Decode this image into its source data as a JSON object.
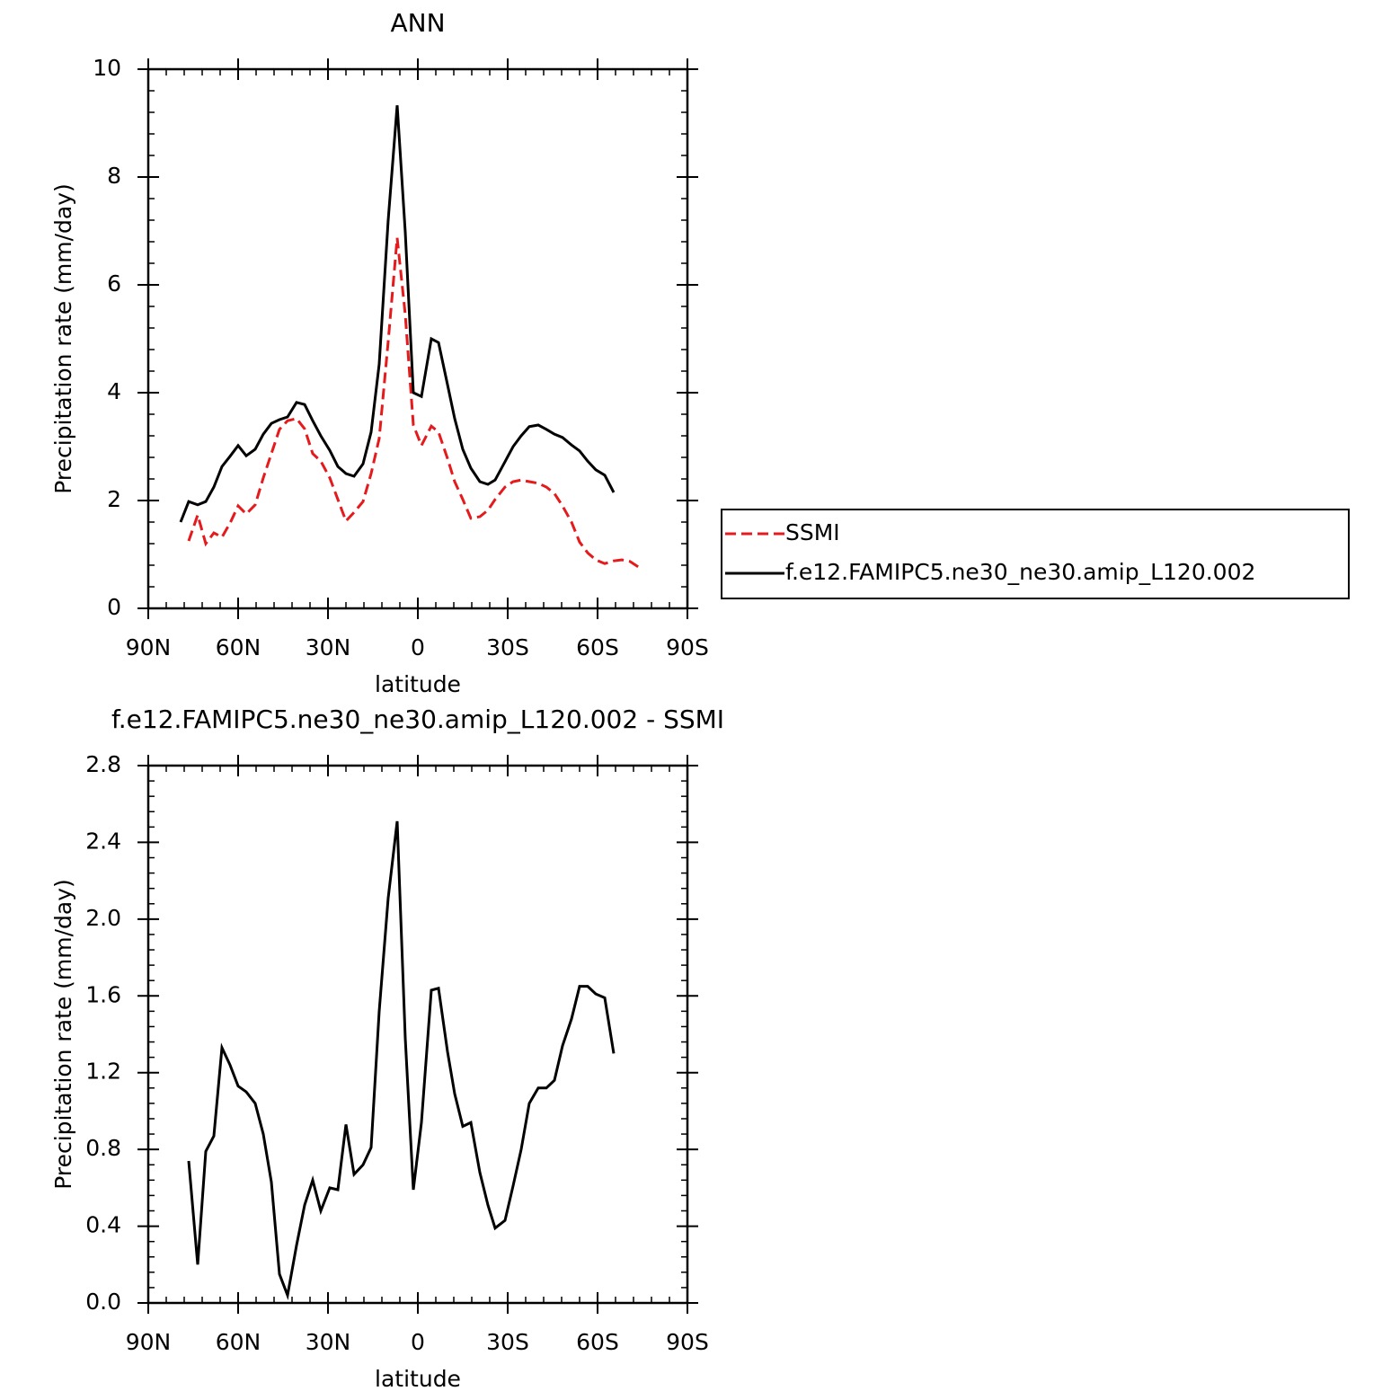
{
  "chart_data": [
    {
      "type": "line",
      "title": "ANN",
      "xlabel": "latitude",
      "ylabel": "Precipitation rate (mm/day)",
      "x": [
        79.2,
        76.5,
        73.5,
        70.8,
        68.1,
        65.4,
        62.7,
        60.0,
        57.3,
        54.3,
        51.6,
        48.9,
        46.2,
        43.5,
        40.5,
        37.8,
        35.1,
        32.4,
        29.4,
        26.7,
        24.0,
        21.3,
        18.3,
        15.6,
        12.9,
        9.9,
        6.9,
        4.2,
        1.5,
        -1.2,
        -4.5,
        -6.9,
        -9.9,
        -12.3,
        -15.0,
        -17.7,
        -20.7,
        -23.4,
        -25.8,
        -29.1,
        -31.8,
        -34.5,
        -37.2,
        -40.2,
        -42.9,
        -45.6,
        -48.3,
        -51.3,
        -54.0,
        -56.7,
        -59.4,
        -62.4,
        -65.4,
        -68.1,
        -70.8,
        -74.1
      ],
      "series": [
        {
          "name": "SSMI",
          "color": "#e41a1c",
          "linestyle": "dashed",
          "values": [
            null,
            1.25,
            1.73,
            1.2,
            1.4,
            1.32,
            1.58,
            1.9,
            1.75,
            1.92,
            2.42,
            2.87,
            3.32,
            3.48,
            3.52,
            3.33,
            2.87,
            2.73,
            2.42,
            2.02,
            1.62,
            1.78,
            1.98,
            2.5,
            3.15,
            4.95,
            6.87,
            5.45,
            3.4,
            3.02,
            3.38,
            3.27,
            2.78,
            2.35,
            2.02,
            1.67,
            1.7,
            1.82,
            2.02,
            2.25,
            2.35,
            2.38,
            2.35,
            2.32,
            2.25,
            2.13,
            1.9,
            1.6,
            1.23,
            1.03,
            0.9,
            0.83,
            0.88,
            0.9,
            0.87,
            0.75
          ]
        },
        {
          "name": "f.e12.FAMIPC5.ne30_ne30.amip_L120.002",
          "color": "#000000",
          "linestyle": "solid",
          "values": [
            1.6,
            1.98,
            1.92,
            1.98,
            2.25,
            2.63,
            2.82,
            3.02,
            2.83,
            2.95,
            3.23,
            3.43,
            3.5,
            3.55,
            3.82,
            3.78,
            3.48,
            3.2,
            2.93,
            2.63,
            2.5,
            2.45,
            2.68,
            3.27,
            4.53,
            7.2,
            9.33,
            6.98,
            4.0,
            3.93,
            5.0,
            4.93,
            4.15,
            3.52,
            2.95,
            2.6,
            2.35,
            2.3,
            2.38,
            2.72,
            3.0,
            3.2,
            3.37,
            3.4,
            3.32,
            3.23,
            3.17,
            3.03,
            2.92,
            2.73,
            2.57,
            2.47,
            2.15,
            null,
            null,
            null
          ]
        }
      ],
      "xlim": [
        90,
        -90
      ],
      "xticks": [
        {
          "value": 90,
          "label": "90N"
        },
        {
          "value": 60,
          "label": "60N"
        },
        {
          "value": 30,
          "label": "30N"
        },
        0,
        {
          "value": -30,
          "label": "30S"
        },
        {
          "value": -60,
          "label": "60S"
        },
        {
          "value": -90,
          "label": "90S"
        }
      ],
      "ylim": [
        0,
        10
      ],
      "yticks": [
        0,
        2,
        4,
        6,
        8,
        10
      ],
      "legend": "right"
    },
    {
      "type": "line",
      "title": "f.e12.FAMIPC5.ne30_ne30.amip_L120.002 - SSMI",
      "xlabel": "latitude",
      "ylabel": "Precipitation rate (mm/day)",
      "x": [
        79.2,
        76.5,
        73.5,
        70.8,
        68.1,
        65.4,
        62.7,
        60.0,
        57.3,
        54.3,
        51.6,
        48.9,
        46.2,
        43.5,
        40.5,
        37.8,
        35.1,
        32.4,
        29.4,
        26.7,
        24.0,
        21.3,
        18.3,
        15.6,
        12.9,
        9.9,
        6.9,
        4.2,
        1.5,
        -1.2,
        -4.5,
        -6.9,
        -9.9,
        -12.3,
        -15.0,
        -17.7,
        -20.7,
        -23.4,
        -25.8,
        -29.1,
        -31.8,
        -34.5,
        -37.2,
        -40.2,
        -42.9,
        -45.6,
        -48.3,
        -51.3,
        -54.0,
        -56.7,
        -59.4,
        -62.4,
        -65.4,
        -68.1,
        -70.8,
        -74.1
      ],
      "series": [
        {
          "color": "#000000",
          "linestyle": "solid",
          "values": [
            null,
            0.74,
            0.2,
            0.79,
            0.87,
            1.33,
            1.24,
            1.13,
            1.1,
            1.04,
            0.88,
            0.63,
            0.15,
            0.04,
            0.3,
            0.51,
            0.64,
            0.48,
            0.6,
            0.59,
            0.93,
            0.67,
            0.72,
            0.81,
            1.52,
            2.11,
            2.51,
            1.38,
            0.59,
            0.94,
            1.63,
            1.64,
            1.31,
            1.09,
            0.92,
            0.94,
            0.68,
            0.51,
            0.39,
            0.43,
            0.61,
            0.8,
            1.04,
            1.12,
            1.12,
            1.16,
            1.34,
            1.48,
            1.65,
            1.65,
            1.61,
            1.59,
            1.3,
            null,
            null,
            null
          ]
        }
      ],
      "xlim": [
        90,
        -90
      ],
      "xticks": [
        {
          "value": 90,
          "label": "90N"
        },
        {
          "value": 60,
          "label": "60N"
        },
        {
          "value": 30,
          "label": "30N"
        },
        0,
        {
          "value": -30,
          "label": "30S"
        },
        {
          "value": -60,
          "label": "60S"
        },
        {
          "value": -90,
          "label": "90S"
        }
      ],
      "ylim": [
        0,
        2.8
      ],
      "yticks": [
        {
          "value": 0,
          "label": "0.0"
        },
        0.4,
        0.8,
        1.2,
        1.6,
        {
          "value": 2,
          "label": "2.0"
        },
        2.4,
        2.8
      ]
    }
  ]
}
